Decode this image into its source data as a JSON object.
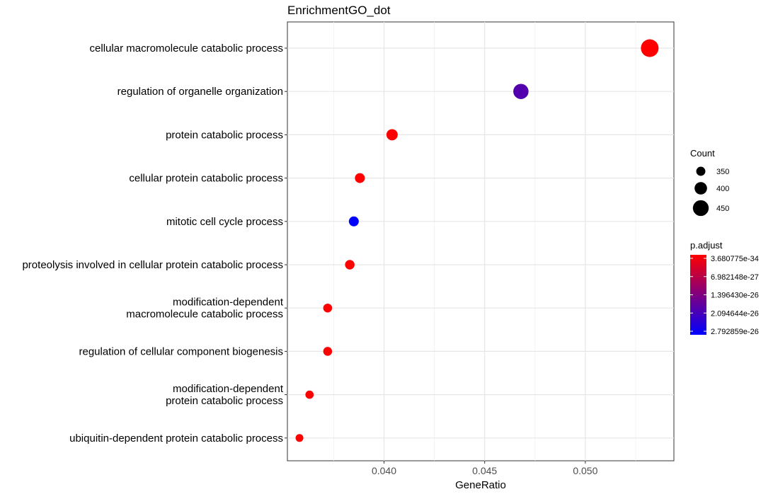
{
  "chart_data": {
    "type": "scatter",
    "title": "EnrichmentGO_dot",
    "xlabel": "GeneRatio",
    "ylabel": "",
    "xlim": [
      0.0352,
      0.0544
    ],
    "xticks": [
      0.04,
      0.045,
      0.05
    ],
    "xtick_labels": [
      "0.040",
      "0.045",
      "0.050"
    ],
    "grid": true,
    "legend_position": "right",
    "points": [
      {
        "label": "cellular macromolecule catabolic process",
        "x": 0.0532,
        "count": 478,
        "p_adjust": 3.680775e-34
      },
      {
        "label": "regulation of organelle organization",
        "x": 0.0468,
        "count": 441,
        "p_adjust": 1.9e-26
      },
      {
        "label": "protein catabolic process",
        "x": 0.0404,
        "count": 382,
        "p_adjust": 3.7e-34
      },
      {
        "label": "cellular protein catabolic process",
        "x": 0.0388,
        "count": 362,
        "p_adjust": 3.7e-34
      },
      {
        "label": "mitotic cell cycle process",
        "x": 0.0385,
        "count": 362,
        "p_adjust": 2.792859e-26
      },
      {
        "label": "proteolysis involved in cellular protein catabolic process",
        "x": 0.0383,
        "count": 356,
        "p_adjust": 3.7e-34
      },
      {
        "label": "modification-dependent\nmacromolecule catabolic process",
        "x": 0.0372,
        "count": 346,
        "p_adjust": 3.7e-34
      },
      {
        "label": "regulation of cellular component biogenesis",
        "x": 0.0372,
        "count": 346,
        "p_adjust": 3.7e-34
      },
      {
        "label": "modification-dependent\nprotein catabolic process",
        "x": 0.0363,
        "count": 337,
        "p_adjust": 3.7e-34
      },
      {
        "label": "ubiquitin-dependent protein catabolic process",
        "x": 0.0358,
        "count": 330,
        "p_adjust": 3.7e-34
      }
    ],
    "size_legend": {
      "title": "Count",
      "entries": [
        350,
        400,
        450
      ],
      "entry_labels": [
        "350",
        "400",
        "450"
      ]
    },
    "color_legend": {
      "title": "p.adjust",
      "labels": [
        "3.680775e-34",
        "6.982148e-27",
        "1.396430e-26",
        "2.094644e-26",
        "2.792859e-26"
      ],
      "low_color": "#ff0000",
      "high_color": "#0000ff"
    }
  }
}
